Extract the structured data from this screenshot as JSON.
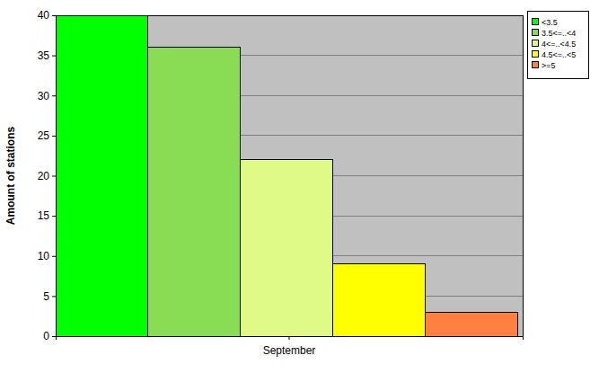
{
  "chart_data": {
    "type": "bar",
    "y_label": "Amount of stations",
    "categories": [
      "September"
    ],
    "series": [
      {
        "name": "<3.5",
        "color": "#00ff00",
        "values": [
          40
        ]
      },
      {
        "name": "3.5<=..<4",
        "color": "#88dd55",
        "values": [
          36
        ]
      },
      {
        "name": "4<=..<4.5",
        "color": "#e0fa88",
        "values": [
          22
        ]
      },
      {
        "name": "4.5<=..<5",
        "color": "#ffff00",
        "values": [
          9
        ]
      },
      {
        "name": ">=5",
        "color": "#ff8040",
        "values": [
          3
        ]
      }
    ],
    "ylim": [
      0,
      40
    ],
    "yticks": [
      0,
      5,
      10,
      15,
      20,
      25,
      30,
      35,
      40
    ],
    "grid": true,
    "legend": "top-right"
  }
}
